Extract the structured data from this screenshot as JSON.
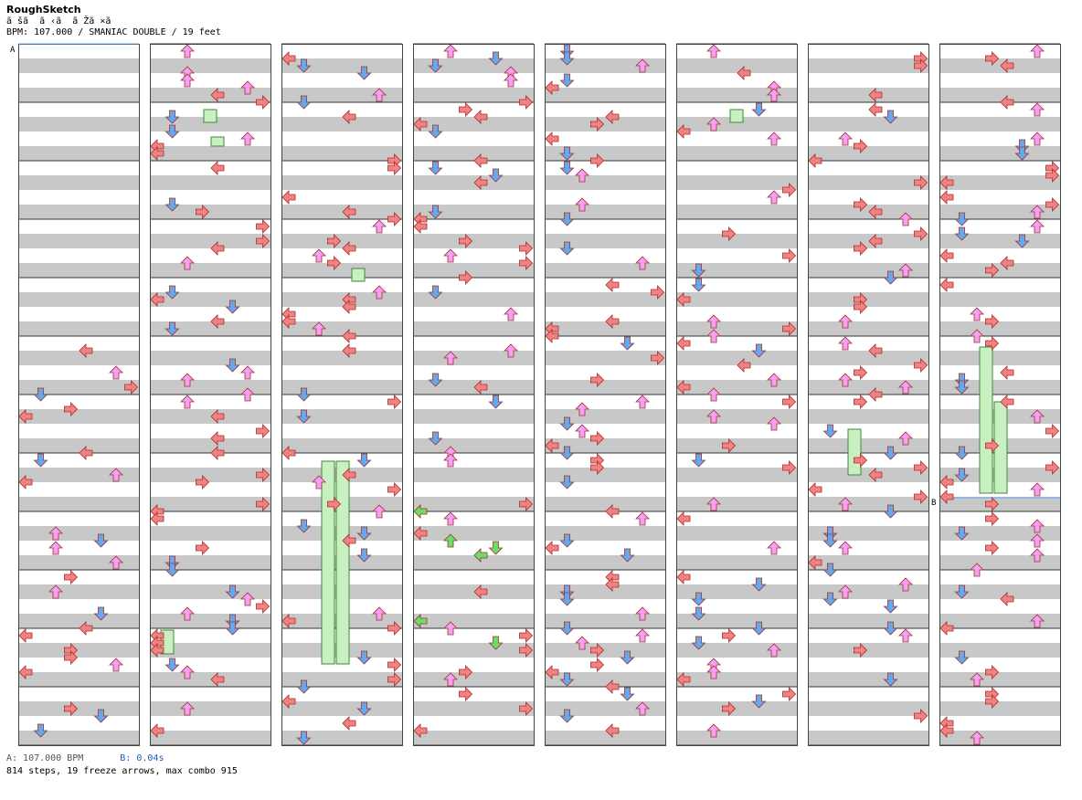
{
  "song": {
    "title": "RoughSketch",
    "subtitle": "ã šã  ã ‹ã  ã Žã ×ã",
    "info": "BPM: 107.000 / SMANIAC DOUBLE / 19 feet"
  },
  "markers": {
    "a": "A",
    "b": "B"
  },
  "legend": {
    "a": "A: 107.000 BPM",
    "b": "B: 0.04s"
  },
  "stats": "814 steps, 19 freeze arrows, max combo 915",
  "colors": {
    "left": "#f48080",
    "down": "#66a8f0",
    "up": "#f4a0f4",
    "right": "#f48080",
    "freeze": "#c8f0c0",
    "stripe": "#c8c8c8"
  }
}
